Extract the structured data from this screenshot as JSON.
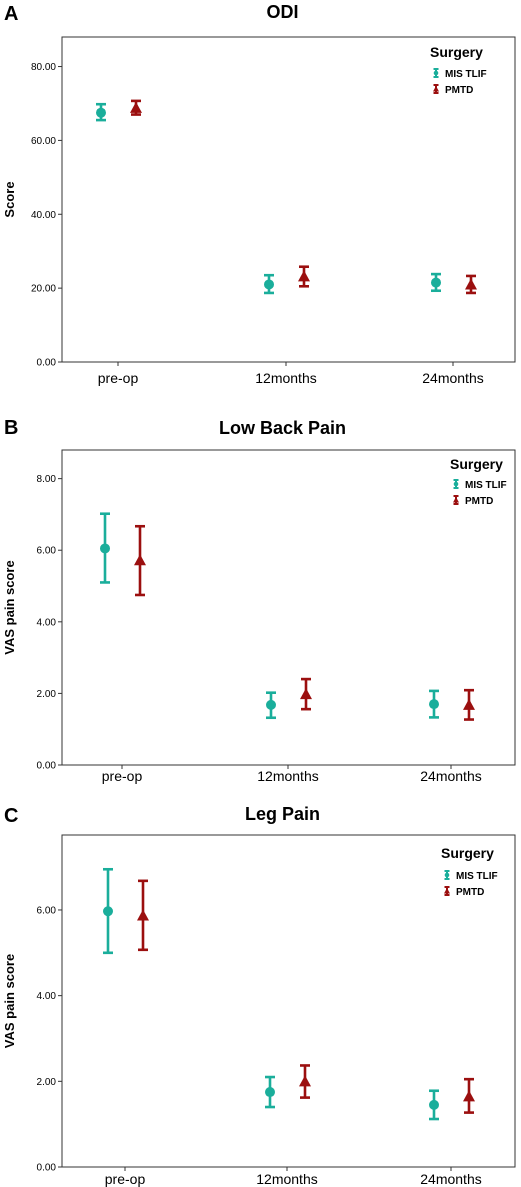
{
  "colors": {
    "mis_tlif": "#1aae9b",
    "pmtd": "#9b0f0f",
    "frame": "#333333"
  },
  "chart_data": [
    {
      "panel": "A",
      "type": "scatter",
      "title": "ODI",
      "ylabel": "Score",
      "xlabel": "",
      "ylim": [
        0,
        88
      ],
      "yticks": [
        "0.00",
        "20.00",
        "40.00",
        "60.00",
        "80.00"
      ],
      "ytick_values": [
        0,
        20,
        40,
        60,
        80
      ],
      "categories": [
        "pre-op",
        "12months",
        "24months"
      ],
      "legend": {
        "title": "Surgery",
        "position": "top-right"
      },
      "grid": false,
      "series": [
        {
          "name": "MIS TLIF",
          "marker": "circle",
          "color": "#1aae9b",
          "values": [
            67.5,
            21.0,
            21.5
          ],
          "lower": [
            65.5,
            18.7,
            19.3
          ],
          "upper": [
            69.8,
            23.5,
            23.8
          ]
        },
        {
          "name": "PMTD",
          "marker": "triangle",
          "color": "#9b0f0f",
          "values": [
            68.8,
            23.2,
            21.0
          ],
          "lower": [
            67.0,
            20.5,
            18.7
          ],
          "upper": [
            70.7,
            25.8,
            23.3
          ]
        }
      ]
    },
    {
      "panel": "B",
      "type": "scatter",
      "title": "Low Back Pain",
      "ylabel": "VAS pain score",
      "xlabel": "",
      "ylim": [
        0,
        8.8
      ],
      "yticks": [
        "0.00",
        "2.00",
        "4.00",
        "6.00",
        "8.00"
      ],
      "ytick_values": [
        0,
        2,
        4,
        6,
        8
      ],
      "categories": [
        "pre-op",
        "12months",
        "24months"
      ],
      "legend": {
        "title": "Surgery",
        "position": "top-right"
      },
      "grid": false,
      "series": [
        {
          "name": "MIS TLIF",
          "marker": "circle",
          "color": "#1aae9b",
          "values": [
            6.05,
            1.68,
            1.7
          ],
          "lower": [
            5.1,
            1.32,
            1.33
          ],
          "upper": [
            7.02,
            2.02,
            2.07
          ]
        },
        {
          "name": "PMTD",
          "marker": "triangle",
          "color": "#9b0f0f",
          "values": [
            5.72,
            1.98,
            1.68
          ],
          "lower": [
            4.75,
            1.56,
            1.27
          ],
          "upper": [
            6.67,
            2.4,
            2.09
          ]
        }
      ]
    },
    {
      "panel": "C",
      "type": "scatter",
      "title": "Leg Pain",
      "ylabel": "VAS pain score",
      "xlabel": "",
      "ylim": [
        0,
        7.75
      ],
      "yticks": [
        "0.00",
        "2.00",
        "4.00",
        "6.00"
      ],
      "ytick_values": [
        0,
        2,
        4,
        6
      ],
      "categories": [
        "pre-op",
        "12months",
        "24months"
      ],
      "legend": {
        "title": "Surgery",
        "position": "top-right"
      },
      "grid": false,
      "series": [
        {
          "name": "MIS TLIF",
          "marker": "circle",
          "color": "#1aae9b",
          "values": [
            5.97,
            1.75,
            1.45
          ],
          "lower": [
            5.0,
            1.4,
            1.12
          ],
          "upper": [
            6.95,
            2.1,
            1.78
          ]
        },
        {
          "name": "PMTD",
          "marker": "triangle",
          "color": "#9b0f0f",
          "values": [
            5.87,
            2.0,
            1.65
          ],
          "lower": [
            5.07,
            1.62,
            1.27
          ],
          "upper": [
            6.68,
            2.37,
            2.05
          ]
        }
      ]
    }
  ]
}
